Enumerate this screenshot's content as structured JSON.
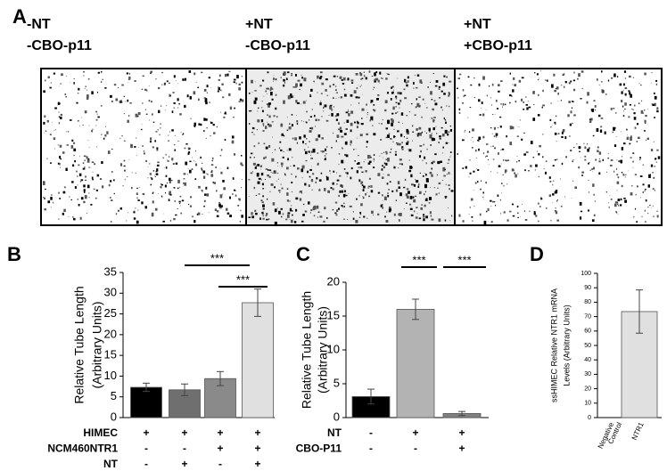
{
  "panel_labels": [
    "A",
    "B",
    "C",
    "D"
  ],
  "images": [
    {
      "caption_lines": [
        "-NT",
        "-CBO-p11"
      ]
    },
    {
      "caption_lines": [
        "+NT",
        "-CBO-p11"
      ]
    },
    {
      "caption_lines": [
        "+NT",
        "+CBO-p11"
      ]
    }
  ],
  "chart_data": [
    {
      "type": "bar",
      "ylabel_lines": [
        "Relative Tube Length",
        "(Arbitrary Units)"
      ],
      "values": [
        7.3,
        6.7,
        9.4,
        27.7
      ],
      "errors": [
        1.0,
        1.4,
        1.7,
        3.3
      ],
      "colors": [
        "#000000",
        "#6f6f6f",
        "#8a8a8a",
        "#e0e0e0"
      ],
      "ylim": [
        0,
        35
      ],
      "yticks": [
        0,
        5,
        10,
        15,
        20,
        25,
        30,
        35
      ],
      "conditions": [
        {
          "name": "HIMEC",
          "values": [
            "+",
            "+",
            "+",
            "+"
          ]
        },
        {
          "name": "NCM460NTR1",
          "values": [
            "-",
            "-",
            "+",
            "+"
          ]
        },
        {
          "name": "NT",
          "values": [
            "-",
            "+",
            "-",
            "+"
          ]
        }
      ],
      "significance": [
        {
          "label": "***"
        },
        {
          "label": "***"
        }
      ]
    },
    {
      "type": "bar",
      "ylabel_lines": [
        "Relative Tube Length",
        "(Arbitrary Units)"
      ],
      "values": [
        3.1,
        16.0,
        0.6
      ],
      "errors": [
        1.1,
        1.5,
        0.3
      ],
      "colors": [
        "#000000",
        "#b3b3b3",
        "#808080"
      ],
      "ylim": [
        0,
        20
      ],
      "yticks": [
        0,
        5,
        10,
        15,
        20
      ],
      "conditions": [
        {
          "name": "NT",
          "values": [
            "-",
            "+",
            "+"
          ]
        },
        {
          "name": "CBO-P11",
          "values": [
            "-",
            "-",
            "+"
          ]
        }
      ],
      "significance": [
        {
          "label": "***"
        },
        {
          "label": "***"
        }
      ]
    },
    {
      "type": "bar",
      "ylabel_lines": [
        "ssHIMEC Relative NTR1 mRNA",
        "Levels (Arbitrary Units)"
      ],
      "categories": [
        [
          "Negative",
          "Control"
        ],
        [
          "NTR1"
        ]
      ],
      "values": [
        0,
        73.5
      ],
      "errors": [
        0,
        15
      ],
      "colors": [
        "#e0e0e0",
        "#e0e0e0"
      ],
      "ylim": [
        0,
        100
      ],
      "yticks": [
        0,
        10,
        20,
        30,
        40,
        50,
        60,
        70,
        80,
        90,
        100
      ]
    }
  ]
}
